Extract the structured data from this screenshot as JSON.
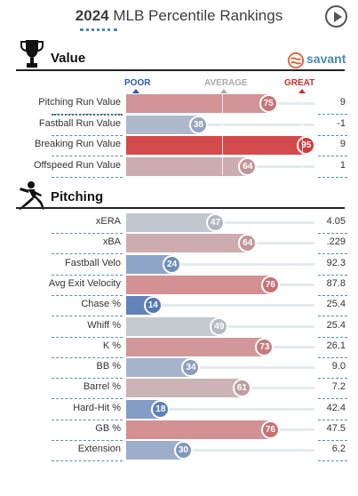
{
  "title": {
    "year": "2024",
    "text": "MLB Percentile Rankings"
  },
  "colors": {
    "accent": "#4a8aa8",
    "poor": "#2a5aa8",
    "average": "#aaaaaa",
    "great": "#d22d2d"
  },
  "icons": {
    "play": "play-icon",
    "trophy": "trophy-icon",
    "pitcher": "pitcher-icon",
    "savant": "savant-logo-icon"
  },
  "sections": {
    "value": {
      "title": "Value",
      "brand": "savant"
    },
    "pitching": {
      "title": "Pitching"
    }
  },
  "scale": {
    "poor": "POOR",
    "average": "AVERAGE",
    "great": "GREAT"
  },
  "chart_data": {
    "type": "bar",
    "title": "2024 MLB Percentile Rankings",
    "xlim": [
      0,
      100
    ],
    "groups": [
      {
        "name": "Value",
        "rows": [
          {
            "metric": "Pitching Run Value",
            "percentile": 75,
            "value": "9"
          },
          {
            "metric": "Fastball Run Value",
            "percentile": 38,
            "value": "-1"
          },
          {
            "metric": "Breaking Run Value",
            "percentile": 95,
            "value": "9"
          },
          {
            "metric": "Offspeed Run Value",
            "percentile": 64,
            "value": "1"
          }
        ]
      },
      {
        "name": "Pitching",
        "rows": [
          {
            "metric": "xERA",
            "percentile": 47,
            "value": "4.05"
          },
          {
            "metric": "xBA",
            "percentile": 64,
            "value": ".229"
          },
          {
            "metric": "Fastball Velo",
            "percentile": 24,
            "value": "92.3"
          },
          {
            "metric": "Avg Exit Velocity",
            "percentile": 76,
            "value": "87.8"
          },
          {
            "metric": "Chase %",
            "percentile": 14,
            "value": "25.4"
          },
          {
            "metric": "Whiff %",
            "percentile": 49,
            "value": "25.4"
          },
          {
            "metric": "K %",
            "percentile": 73,
            "value": "26.1"
          },
          {
            "metric": "BB %",
            "percentile": 34,
            "value": "9.0"
          },
          {
            "metric": "Barrel %",
            "percentile": 61,
            "value": "7.2"
          },
          {
            "metric": "Hard-Hit %",
            "percentile": 18,
            "value": "42.4"
          },
          {
            "metric": "GB %",
            "percentile": 76,
            "value": "47.5"
          },
          {
            "metric": "Extension",
            "percentile": 30,
            "value": "6.2"
          }
        ]
      }
    ]
  }
}
